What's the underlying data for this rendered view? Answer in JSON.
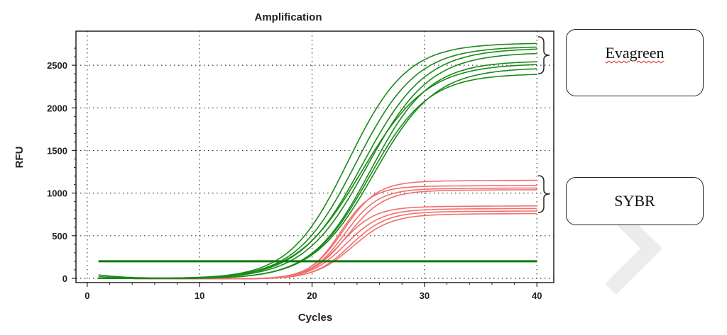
{
  "chart_data": {
    "type": "line",
    "title": "Amplification",
    "xlabel": "Cycles",
    "ylabel": "RFU",
    "xlim": [
      -1,
      41.5
    ],
    "ylim": [
      -50,
      2900
    ],
    "xticks": [
      0,
      10,
      20,
      30,
      40
    ],
    "yticks": [
      0,
      500,
      1000,
      1500,
      2000,
      2500
    ],
    "grid": true,
    "threshold": 200,
    "colors": {
      "evagreen": "#1a8a1a",
      "sybr": "#f07070",
      "threshold": "#0a7a0a"
    },
    "evagreen_curves": [
      {
        "plateau": 2760,
        "midpoint": 23.2,
        "slope": 2.6,
        "start": 20
      },
      {
        "plateau": 2720,
        "midpoint": 23.9,
        "slope": 2.7,
        "start": 0
      },
      {
        "plateau": 2700,
        "midpoint": 24.5,
        "slope": 2.8,
        "start": 0
      },
      {
        "plateau": 2650,
        "midpoint": 24.9,
        "slope": 2.8,
        "start": 0
      },
      {
        "plateau": 2550,
        "midpoint": 25.2,
        "slope": 2.6,
        "start": 40
      },
      {
        "plateau": 2520,
        "midpoint": 24.4,
        "slope": 2.9,
        "start": 0
      },
      {
        "plateau": 2470,
        "midpoint": 25.5,
        "slope": 2.7,
        "start": 0
      },
      {
        "plateau": 2400,
        "midpoint": 25.1,
        "slope": 2.6,
        "start": 0
      }
    ],
    "sybr_curves": [
      {
        "plateau": 1150,
        "midpoint": 22.8,
        "slope": 1.5,
        "start": 0
      },
      {
        "plateau": 1090,
        "midpoint": 22.5,
        "slope": 1.4,
        "start": 0
      },
      {
        "plateau": 1060,
        "midpoint": 22.9,
        "slope": 1.5,
        "start": 0
      },
      {
        "plateau": 1040,
        "midpoint": 23.2,
        "slope": 1.6,
        "start": 0
      },
      {
        "plateau": 850,
        "midpoint": 22.6,
        "slope": 1.5,
        "start": 0
      },
      {
        "plateau": 820,
        "midpoint": 23.0,
        "slope": 1.6,
        "start": 0
      },
      {
        "plateau": 790,
        "midpoint": 23.4,
        "slope": 1.6,
        "start": 0
      },
      {
        "plateau": 760,
        "midpoint": 23.6,
        "slope": 1.7,
        "start": 0
      }
    ]
  },
  "labels": {
    "evagreen": "Evagreen",
    "sybr": "SYBR"
  }
}
